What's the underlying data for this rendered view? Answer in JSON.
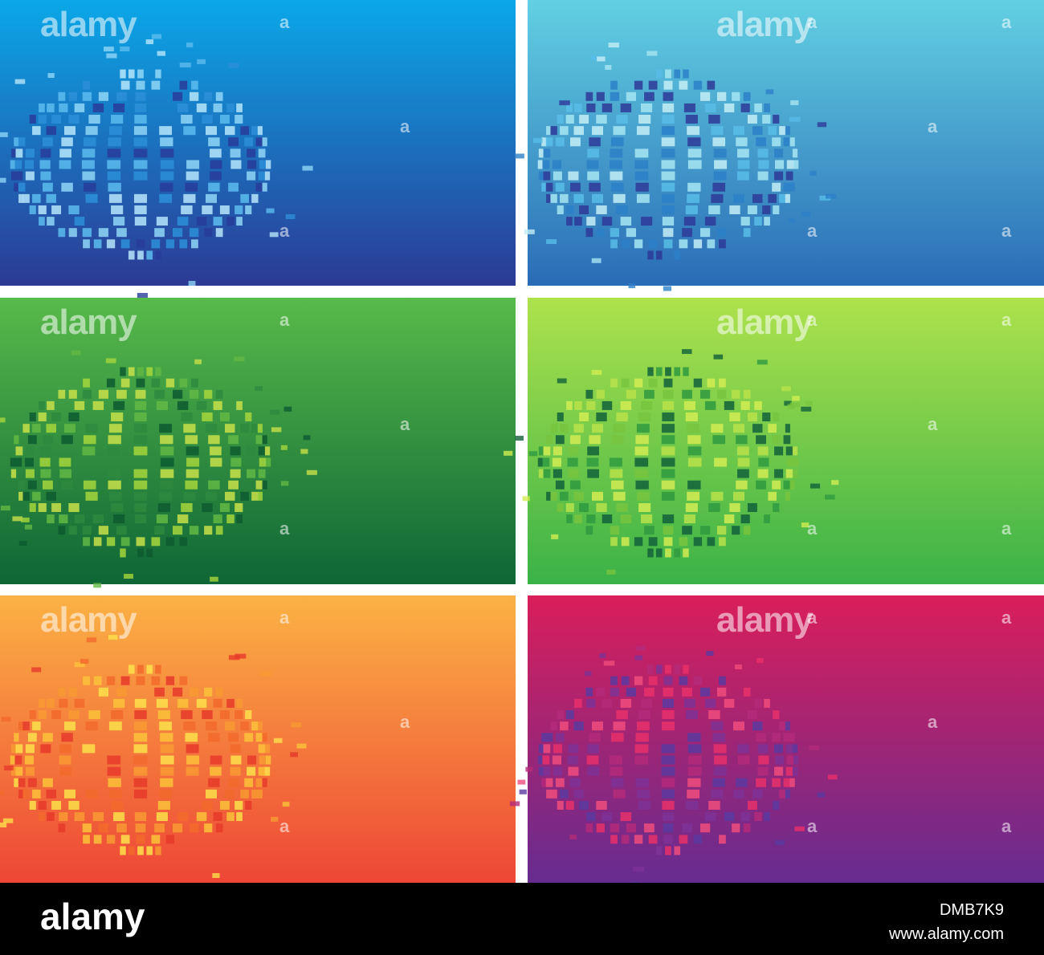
{
  "watermark": "alamy",
  "watermark_mark": "a",
  "footer": {
    "logo": "alamy",
    "image_id": "DMB7K9",
    "url": "www.alamy.com"
  }
}
